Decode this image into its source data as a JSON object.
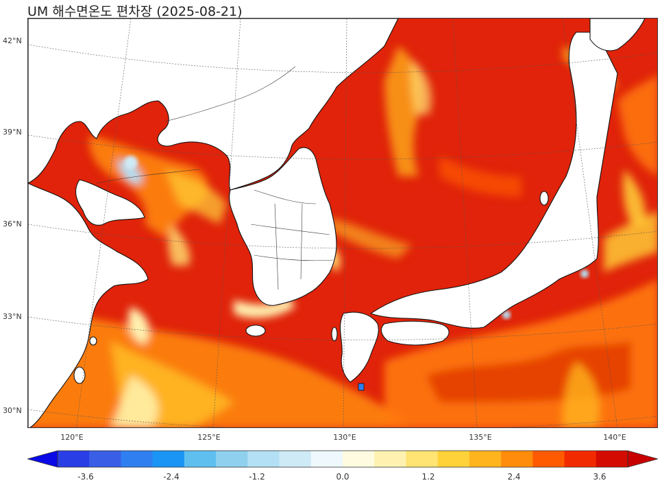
{
  "title": "UM 해수면온도 편차장 (2025-08-21)",
  "map": {
    "variable": "sea surface temperature anomaly",
    "lat_labels": [
      "42°N",
      "39°N",
      "36°N",
      "33°N",
      "30°N"
    ],
    "lon_labels": [
      "120°E",
      "125°E",
      "130°E",
      "135°E",
      "140°E"
    ]
  },
  "colorbar": {
    "tick_labels": [
      "-3.6",
      "-2.4",
      "-1.2",
      "0.0",
      "1.2",
      "2.4",
      "3.6"
    ],
    "colors": [
      "#0a0ae6",
      "#2a3ee6",
      "#3a5fe6",
      "#2f7ff0",
      "#1a95f5",
      "#5fc0f0",
      "#8fd0ee",
      "#b3e0f4",
      "#cfeaf7",
      "#eef8fd",
      "#fffbe0",
      "#fff2b0",
      "#ffe373",
      "#ffd23a",
      "#ffb41e",
      "#ff8c0a",
      "#ff5a00",
      "#f22a00",
      "#d40b00",
      "#c80000"
    ]
  },
  "palette": {
    "land": "#ffffff",
    "coast": "#111111",
    "grid": "#555555",
    "sea_hot": "#d40b00",
    "sea_warm": "#f22a00",
    "sea_orange": "#ff8c0a",
    "sea_yellow": "#ffd23a",
    "sea_pale": "#fff2b0",
    "sea_cool": "#b3e0f4"
  }
}
